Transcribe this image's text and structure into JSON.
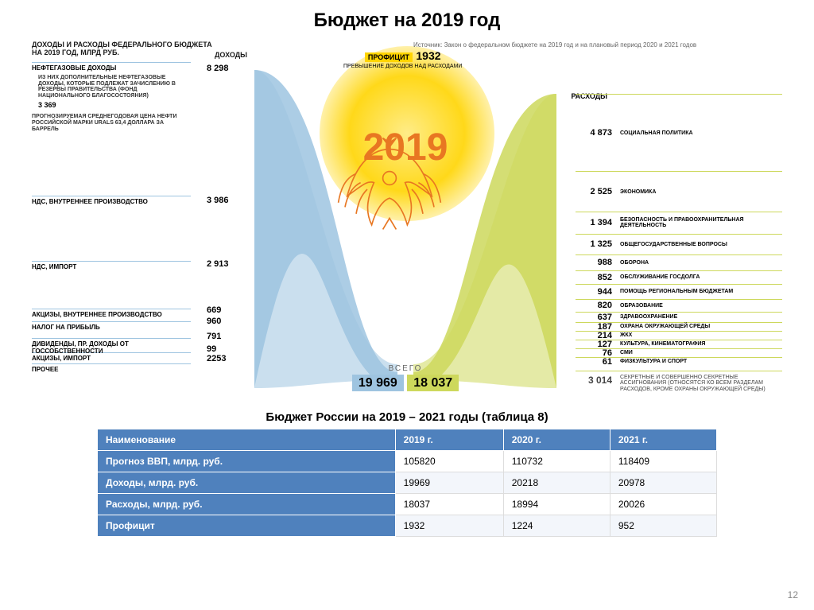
{
  "title": "Бюджет на 2019 год",
  "page_number": 12,
  "colors": {
    "income": "#9ec4e0",
    "expense": "#cdd85c",
    "surplus": "#ffd400",
    "emblem": "#e87722",
    "table_header": "#4f81bd",
    "text": "#1a1a1a",
    "bg": "#ffffff"
  },
  "infographic": {
    "type": "sankey",
    "header": "ДОХОДЫ И РАСХОДЫ ФЕДЕРАЛЬНОГО БЮДЖЕТА\nНА 2019 ГОД, МЛРД РУБ.",
    "income_label": "ДОХОДЫ",
    "expense_label": "РАСХОДЫ",
    "source": "Источник: Закон о федеральном бюджете на 2019 год и на плановый период 2020 и 2021 годов",
    "surplus": {
      "label": "ПРОФИЦИТ",
      "sub": "ПРЕВЫШЕНИЕ ДОХОДОВ НАД РАСХОДАМИ",
      "value": "1932"
    },
    "emblem_year": "2019",
    "totals": {
      "label": "ВСЕГО",
      "income": "19 969",
      "expense": "18 037"
    },
    "income_note": {
      "text": "ИЗ НИХ ДОПОЛНИТЕЛЬНЫЕ НЕФТЕГАЗОВЫЕ ДОХОДЫ, КОТОРЫЕ ПОДЛЕЖАТ ЗАЧИСЛЕНИЮ В РЕЗЕРВЫ ПРАВИТЕЛЬСТВА (ФОНД НАЦИОНАЛЬНОГО БЛАГОСОСТОЯНИЯ)",
      "value": "3 369",
      "oil_price": "Прогнозируемая среднегодовая цена нефти российской марки Urals 63,4 доллара за баррель"
    },
    "incomes": [
      {
        "label": "НЕФТЕГАЗОВЫЕ ДОХОДЫ",
        "value": "8 298",
        "num": 8298
      },
      {
        "label": "НДС, ВНУТРЕННЕЕ ПРОИЗВОДСТВО",
        "value": "3 986",
        "num": 3986
      },
      {
        "label": "НДС, ИМПОРТ",
        "value": "2 913",
        "num": 2913
      },
      {
        "label": "АКЦИЗЫ, ВНУТРЕННЕЕ ПРОИЗВОДСТВО",
        "value": "669",
        "num": 669
      },
      {
        "label": "НАЛОГ НА ПРИБЫЛЬ",
        "value": "960",
        "num": 960
      },
      {
        "label": "ДИВИДЕНДЫ, ПР. ДОХОДЫ ОТ ГОССОБСТВЕННОСТИ",
        "value": "791",
        "num": 791
      },
      {
        "label": "АКЦИЗЫ, ИМПОРТ",
        "value": "99",
        "num": 99
      },
      {
        "label": "ПРОЧЕЕ",
        "value": "2253",
        "num": 2253
      }
    ],
    "expenses": [
      {
        "label": "СОЦИАЛЬНАЯ ПОЛИТИКА",
        "value": "4 873",
        "num": 4873
      },
      {
        "label": "ЭКОНОМИКА",
        "value": "2 525",
        "num": 2525
      },
      {
        "label": "БЕЗОПАСНОСТЬ И ПРАВООХРАНИТЕЛЬНАЯ ДЕЯТЕЛЬНОСТЬ",
        "value": "1 394",
        "num": 1394
      },
      {
        "label": "ОБЩЕГОСУДАРСТВЕННЫЕ ВОПРОСЫ",
        "value": "1 325",
        "num": 1325
      },
      {
        "label": "ОБОРОНА",
        "value": "988",
        "num": 988
      },
      {
        "label": "ОБСЛУЖИВАНИЕ ГОСДОЛГА",
        "value": "852",
        "num": 852
      },
      {
        "label": "ПОМОЩЬ РЕГИОНАЛЬНЫМ БЮДЖЕТАМ",
        "value": "944",
        "num": 944
      },
      {
        "label": "ОБРАЗОВАНИЕ",
        "value": "820",
        "num": 820
      },
      {
        "label": "ЗДРАВООХРАНЕНИЕ",
        "value": "637",
        "num": 637
      },
      {
        "label": "ОХРАНА ОКРУЖАЮЩЕЙ СРЕДЫ",
        "value": "187",
        "num": 187
      },
      {
        "label": "ЖКХ",
        "value": "214",
        "num": 214
      },
      {
        "label": "КУЛЬТУРА, КИНЕМАТОГРАФИЯ",
        "value": "127",
        "num": 127
      },
      {
        "label": "СМИ",
        "value": "76",
        "num": 76
      },
      {
        "label": "ФИЗКУЛЬТУРА И СПОРТ",
        "value": "61",
        "num": 61
      }
    ],
    "secret": {
      "value": "3 014",
      "label": "СЕКРЕТНЫЕ И СОВЕРШЕННО СЕКРЕТНЫЕ АССИГНОВАНИЯ (ОТНОСЯТСЯ КО ВСЕМ РАЗДЕЛАМ РАСХОДОВ, КРОМЕ ОХРАНЫ ОКРУЖАЮЩЕЙ СРЕДЫ)"
    }
  },
  "table": {
    "title": "Бюджет России на 2019 – 2021 годы (таблица 8)",
    "columns": [
      "Наименование",
      "2019 г.",
      "2020 г.",
      "2021 г."
    ],
    "rows": [
      [
        "Прогноз ВВП, млрд. руб.",
        "105820",
        "110732",
        "118409"
      ],
      [
        "Доходы, млрд. руб.",
        "19969",
        "20218",
        "20978"
      ],
      [
        "Расходы, млрд. руб.",
        "18037",
        "18994",
        "20026"
      ],
      [
        "Профицит",
        "1932",
        "1224",
        "952"
      ]
    ]
  }
}
